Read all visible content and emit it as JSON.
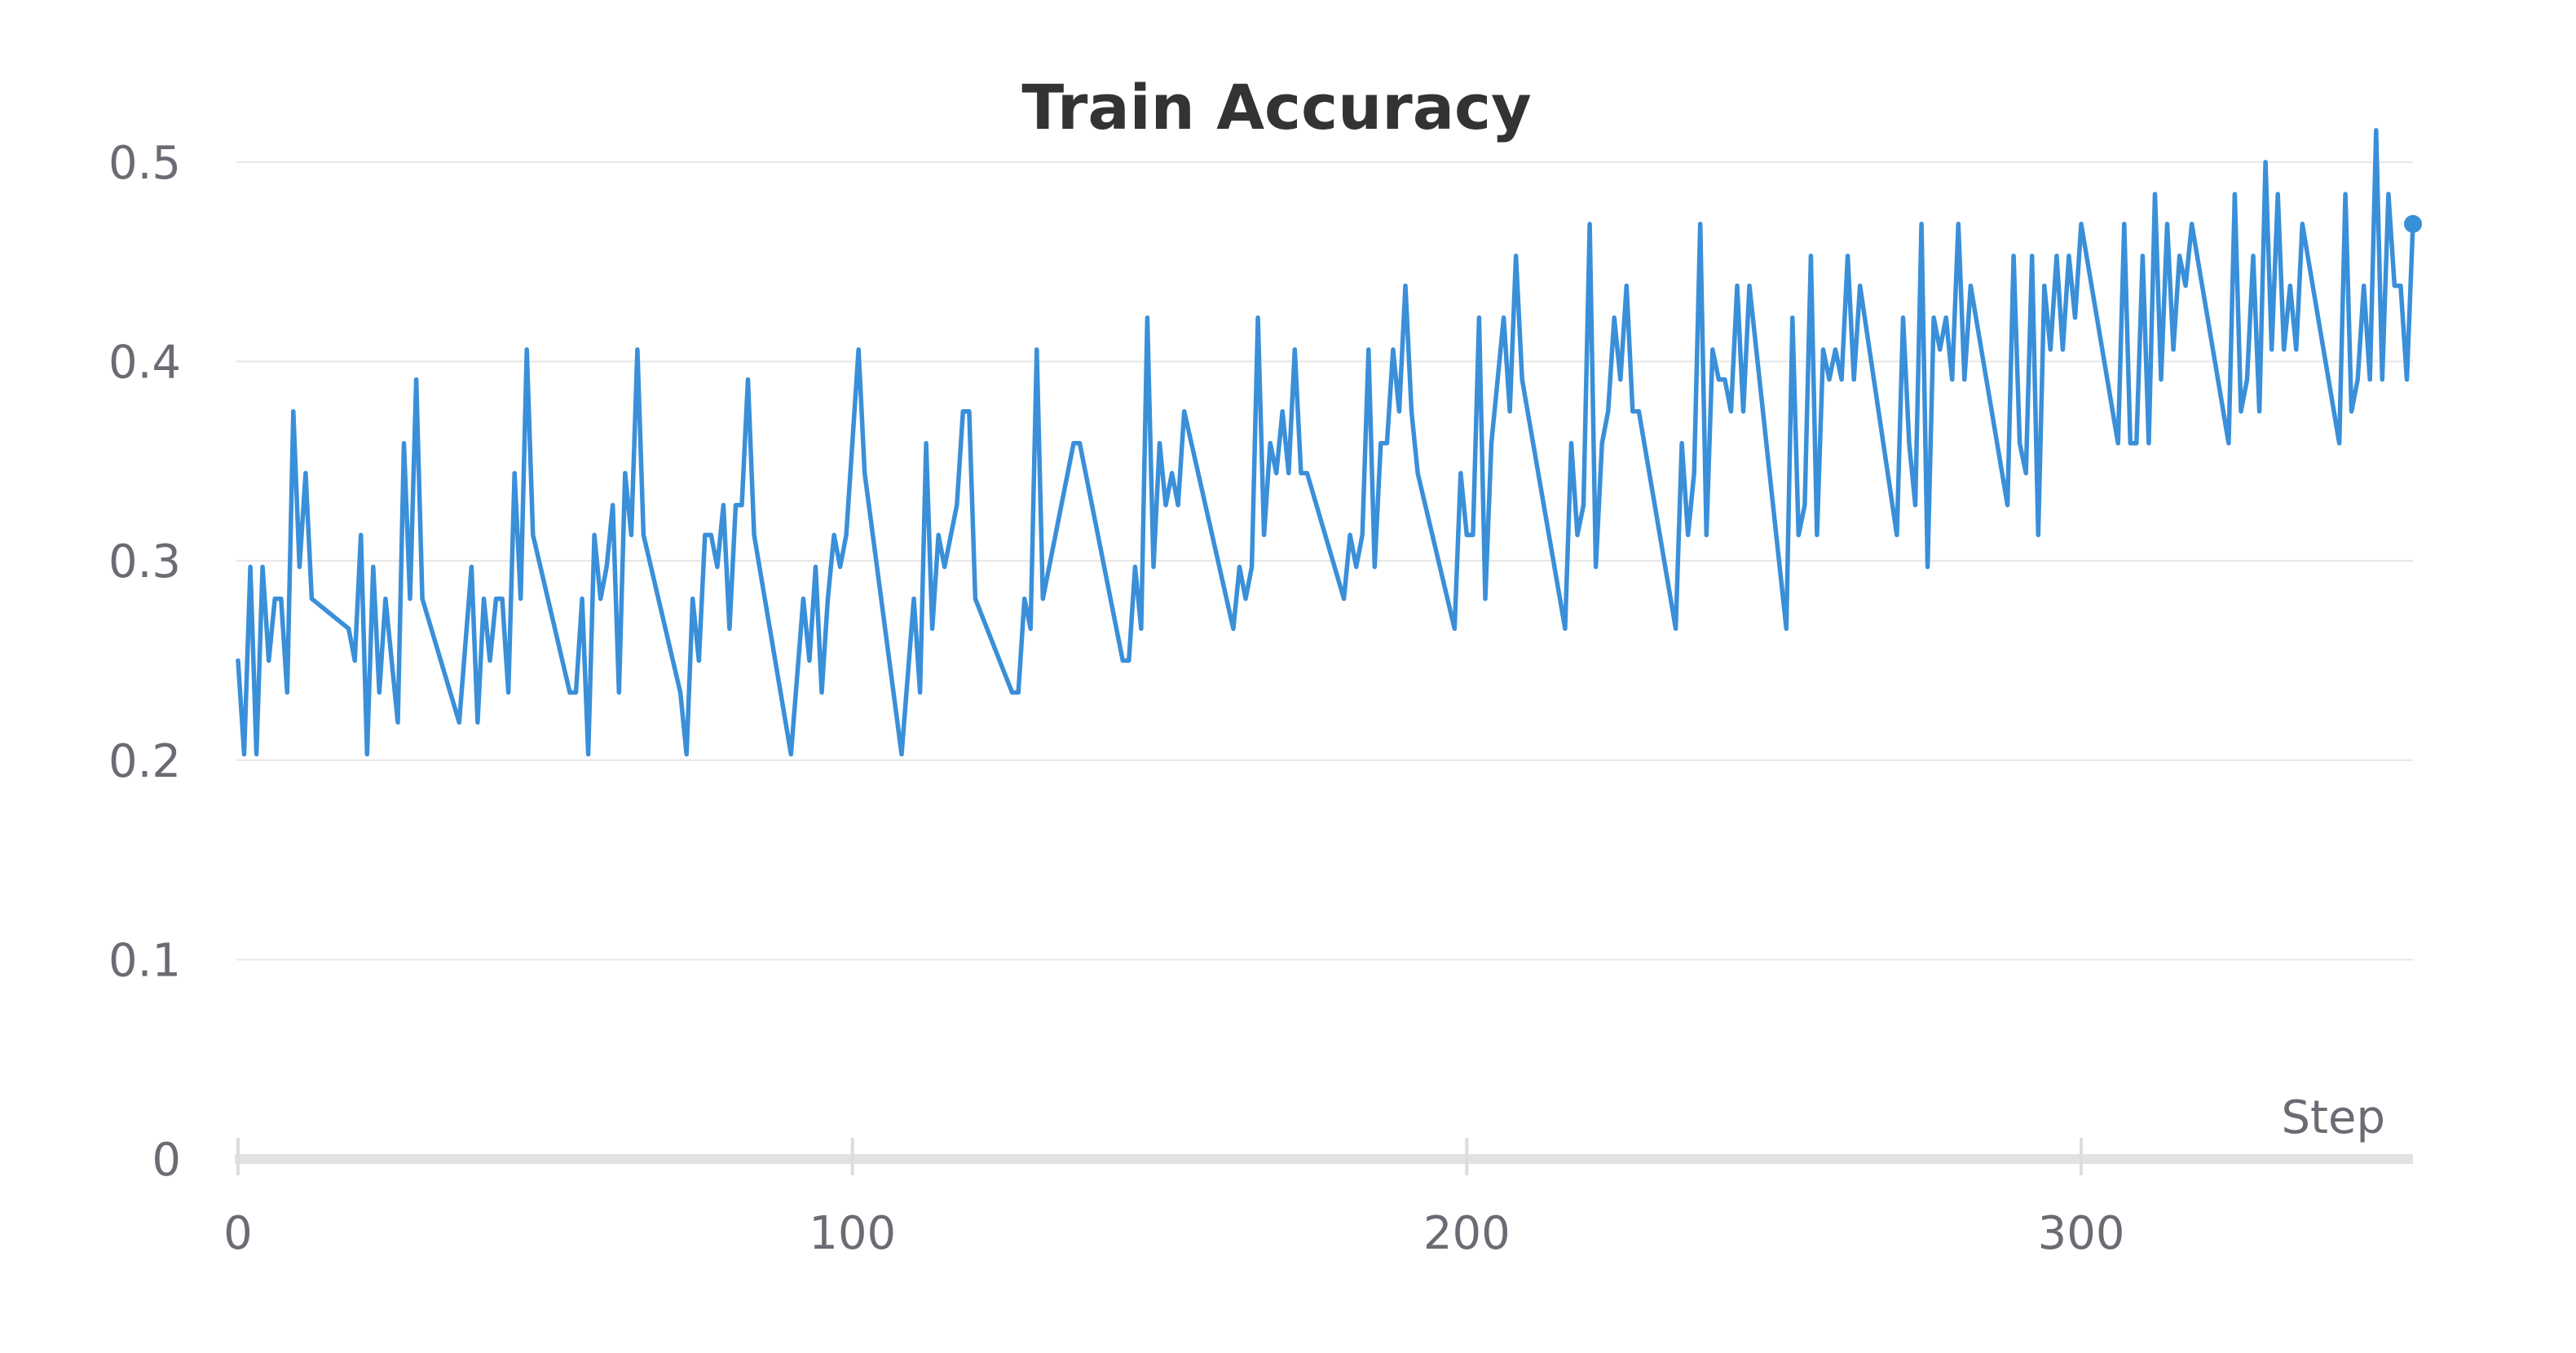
{
  "chart_data": {
    "type": "line",
    "title": "Train Accuracy",
    "xlabel": "Step",
    "ylabel": "",
    "xlim": [
      0,
      354
    ],
    "ylim": [
      0,
      0.52
    ],
    "grid": true,
    "legend": false,
    "xticks": [
      {
        "value": 0,
        "label": "0"
      },
      {
        "value": 100,
        "label": "100"
      },
      {
        "value": 200,
        "label": "200"
      },
      {
        "value": 300,
        "label": "300"
      }
    ],
    "yticks": [
      {
        "value": 0,
        "label": "0"
      },
      {
        "value": 0.1,
        "label": "0.1"
      },
      {
        "value": 0.2,
        "label": "0.2"
      },
      {
        "value": 0.3,
        "label": "0.3"
      },
      {
        "value": 0.4,
        "label": "0.4"
      },
      {
        "value": 0.5,
        "label": "0.5"
      }
    ],
    "series": [
      {
        "color": "#3a8fd9",
        "last_point_marker": true,
        "points": [
          [
            0,
            0.25
          ],
          [
            1,
            0.203
          ],
          [
            2,
            0.297
          ],
          [
            3,
            0.203
          ],
          [
            4,
            0.297
          ],
          [
            5,
            0.25
          ],
          [
            6,
            0.281
          ],
          [
            7,
            0.281
          ],
          [
            8,
            0.234
          ],
          [
            9,
            0.375
          ],
          [
            10,
            0.297
          ],
          [
            11,
            0.344
          ],
          [
            12,
            0.281
          ],
          [
            18,
            0.266
          ],
          [
            19,
            0.25
          ],
          [
            20,
            0.313
          ],
          [
            21,
            0.203
          ],
          [
            22,
            0.297
          ],
          [
            23,
            0.234
          ],
          [
            24,
            0.281
          ],
          [
            26,
            0.219
          ],
          [
            27,
            0.359
          ],
          [
            28,
            0.281
          ],
          [
            29,
            0.391
          ],
          [
            30,
            0.281
          ],
          [
            36,
            0.219
          ],
          [
            38,
            0.297
          ],
          [
            39,
            0.219
          ],
          [
            40,
            0.281
          ],
          [
            41,
            0.25
          ],
          [
            42,
            0.281
          ],
          [
            43,
            0.281
          ],
          [
            44,
            0.234
          ],
          [
            45,
            0.344
          ],
          [
            46,
            0.281
          ],
          [
            47,
            0.406
          ],
          [
            48,
            0.313
          ],
          [
            54,
            0.234
          ],
          [
            55,
            0.234
          ],
          [
            56,
            0.281
          ],
          [
            57,
            0.203
          ],
          [
            58,
            0.313
          ],
          [
            59,
            0.281
          ],
          [
            60,
            0.297
          ],
          [
            61,
            0.328
          ],
          [
            62,
            0.234
          ],
          [
            63,
            0.344
          ],
          [
            64,
            0.313
          ],
          [
            65,
            0.406
          ],
          [
            66,
            0.313
          ],
          [
            72,
            0.234
          ],
          [
            73,
            0.203
          ],
          [
            74,
            0.281
          ],
          [
            75,
            0.25
          ],
          [
            76,
            0.313
          ],
          [
            77,
            0.313
          ],
          [
            78,
            0.297
          ],
          [
            79,
            0.328
          ],
          [
            80,
            0.266
          ],
          [
            81,
            0.328
          ],
          [
            82,
            0.328
          ],
          [
            83,
            0.391
          ],
          [
            84,
            0.313
          ],
          [
            90,
            0.203
          ],
          [
            92,
            0.281
          ],
          [
            93,
            0.25
          ],
          [
            94,
            0.297
          ],
          [
            95,
            0.234
          ],
          [
            96,
            0.281
          ],
          [
            97,
            0.313
          ],
          [
            98,
            0.297
          ],
          [
            99,
            0.313
          ],
          [
            101,
            0.406
          ],
          [
            102,
            0.344
          ],
          [
            108,
            0.203
          ],
          [
            110,
            0.281
          ],
          [
            111,
            0.234
          ],
          [
            112,
            0.359
          ],
          [
            113,
            0.266
          ],
          [
            114,
            0.313
          ],
          [
            115,
            0.297
          ],
          [
            117,
            0.328
          ],
          [
            118,
            0.375
          ],
          [
            119,
            0.375
          ],
          [
            120,
            0.281
          ],
          [
            126,
            0.234
          ],
          [
            127,
            0.234
          ],
          [
            128,
            0.281
          ],
          [
            129,
            0.266
          ],
          [
            130,
            0.406
          ],
          [
            131,
            0.281
          ],
          [
            136,
            0.359
          ],
          [
            137,
            0.359
          ],
          [
            144,
            0.25
          ],
          [
            145,
            0.25
          ],
          [
            146,
            0.297
          ],
          [
            147,
            0.266
          ],
          [
            148,
            0.422
          ],
          [
            149,
            0.297
          ],
          [
            150,
            0.359
          ],
          [
            151,
            0.328
          ],
          [
            152,
            0.344
          ],
          [
            153,
            0.328
          ],
          [
            154,
            0.375
          ],
          [
            162,
            0.266
          ],
          [
            163,
            0.297
          ],
          [
            164,
            0.281
          ],
          [
            165,
            0.297
          ],
          [
            166,
            0.422
          ],
          [
            167,
            0.313
          ],
          [
            168,
            0.359
          ],
          [
            169,
            0.344
          ],
          [
            170,
            0.375
          ],
          [
            171,
            0.344
          ],
          [
            172,
            0.406
          ],
          [
            173,
            0.344
          ],
          [
            174,
            0.344
          ],
          [
            180,
            0.281
          ],
          [
            181,
            0.313
          ],
          [
            182,
            0.297
          ],
          [
            183,
            0.313
          ],
          [
            184,
            0.406
          ],
          [
            185,
            0.297
          ],
          [
            186,
            0.359
          ],
          [
            187,
            0.359
          ],
          [
            188,
            0.406
          ],
          [
            189,
            0.375
          ],
          [
            190,
            0.438
          ],
          [
            191,
            0.375
          ],
          [
            192,
            0.344
          ],
          [
            198,
            0.266
          ],
          [
            199,
            0.344
          ],
          [
            200,
            0.313
          ],
          [
            201,
            0.313
          ],
          [
            202,
            0.422
          ],
          [
            203,
            0.281
          ],
          [
            204,
            0.359
          ],
          [
            206,
            0.422
          ],
          [
            207,
            0.375
          ],
          [
            208,
            0.453
          ],
          [
            209,
            0.391
          ],
          [
            216,
            0.266
          ],
          [
            217,
            0.359
          ],
          [
            218,
            0.313
          ],
          [
            219,
            0.328
          ],
          [
            220,
            0.469
          ],
          [
            221,
            0.297
          ],
          [
            222,
            0.359
          ],
          [
            223,
            0.375
          ],
          [
            224,
            0.422
          ],
          [
            225,
            0.391
          ],
          [
            226,
            0.438
          ],
          [
            227,
            0.375
          ],
          [
            228,
            0.375
          ],
          [
            234,
            0.266
          ],
          [
            235,
            0.359
          ],
          [
            236,
            0.313
          ],
          [
            237,
            0.344
          ],
          [
            238,
            0.469
          ],
          [
            239,
            0.313
          ],
          [
            240,
            0.406
          ],
          [
            241,
            0.391
          ],
          [
            242,
            0.391
          ],
          [
            243,
            0.375
          ],
          [
            244,
            0.438
          ],
          [
            245,
            0.375
          ],
          [
            246,
            0.438
          ],
          [
            252,
            0.266
          ],
          [
            253,
            0.422
          ],
          [
            254,
            0.313
          ],
          [
            255,
            0.328
          ],
          [
            256,
            0.453
          ],
          [
            257,
            0.313
          ],
          [
            258,
            0.406
          ],
          [
            259,
            0.391
          ],
          [
            260,
            0.406
          ],
          [
            261,
            0.391
          ],
          [
            262,
            0.453
          ],
          [
            263,
            0.391
          ],
          [
            264,
            0.438
          ],
          [
            270,
            0.313
          ],
          [
            271,
            0.422
          ],
          [
            272,
            0.359
          ],
          [
            273,
            0.328
          ],
          [
            274,
            0.469
          ],
          [
            275,
            0.297
          ],
          [
            276,
            0.422
          ],
          [
            277,
            0.406
          ],
          [
            278,
            0.422
          ],
          [
            279,
            0.391
          ],
          [
            280,
            0.469
          ],
          [
            281,
            0.391
          ],
          [
            282,
            0.438
          ],
          [
            288,
            0.328
          ],
          [
            289,
            0.453
          ],
          [
            290,
            0.359
          ],
          [
            291,
            0.344
          ],
          [
            292,
            0.453
          ],
          [
            293,
            0.313
          ],
          [
            294,
            0.438
          ],
          [
            295,
            0.406
          ],
          [
            296,
            0.453
          ],
          [
            297,
            0.406
          ],
          [
            298,
            0.453
          ],
          [
            299,
            0.422
          ],
          [
            300,
            0.469
          ],
          [
            306,
            0.359
          ],
          [
            307,
            0.469
          ],
          [
            308,
            0.359
          ],
          [
            309,
            0.359
          ],
          [
            310,
            0.453
          ],
          [
            311,
            0.359
          ],
          [
            312,
            0.484
          ],
          [
            313,
            0.391
          ],
          [
            314,
            0.469
          ],
          [
            315,
            0.406
          ],
          [
            316,
            0.453
          ],
          [
            317,
            0.438
          ],
          [
            318,
            0.469
          ],
          [
            324,
            0.359
          ],
          [
            325,
            0.484
          ],
          [
            326,
            0.375
          ],
          [
            327,
            0.391
          ],
          [
            328,
            0.453
          ],
          [
            329,
            0.375
          ],
          [
            330,
            0.5
          ],
          [
            331,
            0.406
          ],
          [
            332,
            0.484
          ],
          [
            333,
            0.406
          ],
          [
            334,
            0.438
          ],
          [
            335,
            0.406
          ],
          [
            336,
            0.469
          ],
          [
            342,
            0.359
          ],
          [
            343,
            0.484
          ],
          [
            344,
            0.375
          ],
          [
            345,
            0.391
          ],
          [
            346,
            0.438
          ],
          [
            347,
            0.391
          ],
          [
            348,
            0.516
          ],
          [
            349,
            0.391
          ],
          [
            350,
            0.484
          ],
          [
            351,
            0.438
          ],
          [
            352,
            0.438
          ],
          [
            353,
            0.391
          ],
          [
            354,
            0.469
          ]
        ]
      }
    ]
  }
}
